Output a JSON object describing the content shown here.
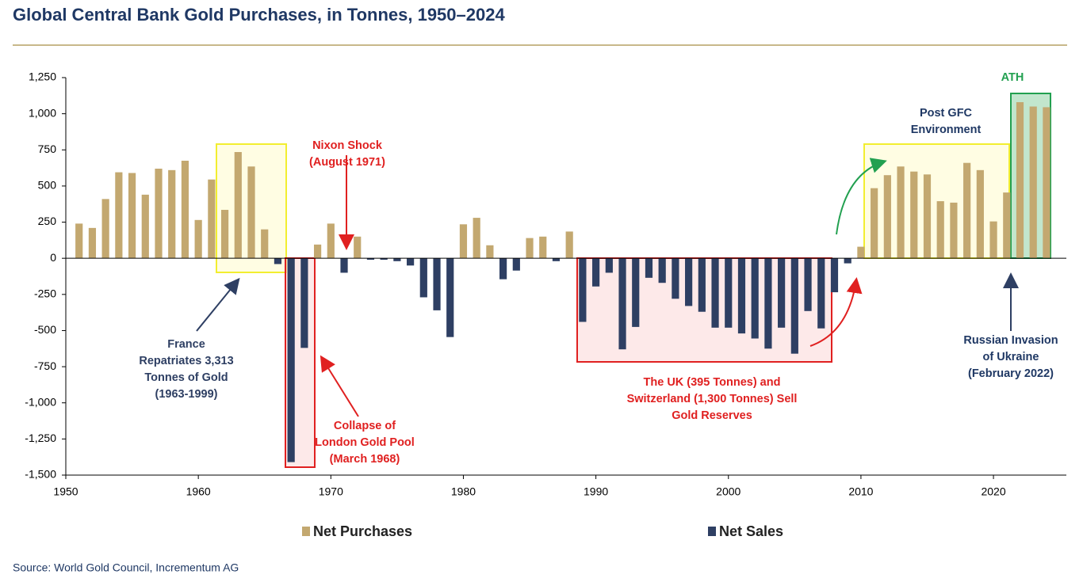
{
  "chart_data": {
    "type": "bar",
    "title": "Global Central Bank Gold Purchases, in Tonnes, 1950–2024",
    "source": "Source: World Gold Council, Incrementum AG",
    "x": [
      1951,
      1952,
      1953,
      1954,
      1955,
      1956,
      1957,
      1958,
      1959,
      1960,
      1961,
      1962,
      1963,
      1964,
      1965,
      1966,
      1967,
      1968,
      1969,
      1970,
      1971,
      1972,
      1973,
      1974,
      1975,
      1976,
      1977,
      1978,
      1979,
      1980,
      1981,
      1982,
      1983,
      1984,
      1985,
      1986,
      1987,
      1988,
      1989,
      1990,
      1991,
      1992,
      1993,
      1994,
      1995,
      1996,
      1997,
      1998,
      1999,
      2000,
      2001,
      2002,
      2003,
      2004,
      2005,
      2006,
      2007,
      2008,
      2009,
      2010,
      2011,
      2012,
      2013,
      2014,
      2015,
      2016,
      2017,
      2018,
      2019,
      2020,
      2021,
      2022,
      2023,
      2024
    ],
    "series": [
      {
        "name": "Net Purchases",
        "color": "#c3a870",
        "values": [
          240,
          210,
          410,
          595,
          590,
          440,
          620,
          610,
          675,
          265,
          545,
          335,
          735,
          635,
          200,
          null,
          null,
          null,
          95,
          240,
          null,
          150,
          null,
          null,
          null,
          null,
          null,
          null,
          null,
          235,
          280,
          90,
          null,
          null,
          140,
          150,
          null,
          185,
          null,
          null,
          null,
          null,
          null,
          null,
          null,
          null,
          null,
          null,
          null,
          null,
          null,
          null,
          null,
          null,
          null,
          null,
          null,
          null,
          null,
          80,
          485,
          575,
          635,
          600,
          580,
          395,
          385,
          660,
          610,
          255,
          455,
          1080,
          1050,
          1045
        ]
      },
      {
        "name": "Net Sales",
        "color": "#2e3f63",
        "values": [
          null,
          null,
          null,
          null,
          null,
          null,
          null,
          null,
          null,
          null,
          null,
          null,
          null,
          null,
          null,
          -40,
          -1410,
          -620,
          null,
          null,
          -100,
          null,
          -10,
          -10,
          -20,
          -50,
          -270,
          -360,
          -545,
          null,
          null,
          null,
          -145,
          -85,
          null,
          null,
          -20,
          null,
          -440,
          -195,
          -100,
          -630,
          -475,
          -135,
          -170,
          -280,
          -330,
          -370,
          -480,
          -480,
          -520,
          -555,
          -625,
          -480,
          -660,
          -365,
          -485,
          -235,
          -35,
          null,
          null,
          null,
          null,
          null,
          null,
          null,
          null,
          null,
          null,
          null,
          null,
          null,
          null,
          null
        ]
      }
    ],
    "xlim": [
      1950,
      2025.5
    ],
    "xticks": [
      1950,
      1960,
      1970,
      1980,
      1990,
      2000,
      2010,
      2020
    ],
    "ylim": [
      -1500,
      1250
    ],
    "yticks": [
      {
        "value": -1500,
        "label": "-1,500"
      },
      {
        "value": -1250,
        "label": "-1,250"
      },
      {
        "value": -1000,
        "label": "-1,000"
      },
      -750,
      -500,
      -250,
      0,
      250,
      500,
      750,
      {
        "value": 1000,
        "label": "1,000"
      },
      {
        "value": 1250,
        "label": "1,250"
      }
    ],
    "annotations": [
      {
        "lines": [
          "France",
          "Repatriates 3,313",
          "Tonnes of Gold",
          "(1963-1999)"
        ]
      },
      {
        "lines": [
          "Nixon Shock",
          "(August 1971)"
        ]
      },
      {
        "lines": [
          "Collapse of",
          "London Gold Pool",
          "(March 1968)"
        ]
      },
      {
        "lines": [
          "The UK (395 Tonnes) and",
          "Switzerland (1,300 Tonnes) Sell",
          "Gold Reserves"
        ]
      },
      {
        "lines": [
          "Post GFC",
          "Environment"
        ]
      },
      {
        "lines": [
          "ATH"
        ]
      },
      {
        "lines": [
          "Russian Invasion",
          "of Ukraine",
          "(February 2022)"
        ]
      }
    ]
  }
}
